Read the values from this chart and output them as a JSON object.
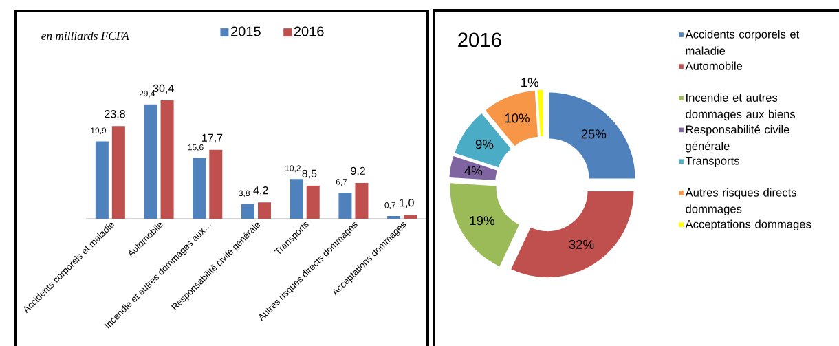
{
  "chart_data": [
    {
      "type": "bar",
      "annotations": [
        "en milliards FCFA"
      ],
      "legend": "top",
      "tick_labels": "x",
      "categories": [
        "Accidents corporels et maladie",
        "Automobile",
        "Incendie et autres dommages aux…",
        "Responsabilité civile générale",
        "Transports",
        "Autres risques directs dommages",
        "Acceptations dommages"
      ],
      "series": [
        {
          "name": "2015",
          "color": "#4f81bd",
          "values": [
            19.9,
            29.4,
            15.6,
            3.8,
            10.2,
            6.7,
            0.7
          ],
          "value_labels": [
            "19,9",
            "29,4",
            "15,6",
            "3,8",
            "10,2",
            "6,7",
            "0,7"
          ]
        },
        {
          "name": "2016",
          "color": "#c0504d",
          "values": [
            23.8,
            30.4,
            17.7,
            4.2,
            8.5,
            9.2,
            1.0
          ],
          "value_labels": [
            "23,8",
            "30,4",
            "17,7",
            "4,2",
            "8,5",
            "9,2",
            "1,0"
          ]
        }
      ]
    },
    {
      "type": "donut",
      "title": "2016",
      "legend": "right",
      "categories": [
        "Accidents corporels et maladie",
        "Automobile",
        "Incendie et autres dommages aux biens",
        "Responsabilité civile générale",
        "Transports",
        "Autres risques directs dommages",
        "Acceptations dommages"
      ],
      "values": [
        25,
        32,
        19,
        4,
        9,
        10,
        1
      ],
      "value_labels": [
        "25%",
        "32%",
        "19%",
        "4%",
        "9%",
        "10%",
        "1%"
      ],
      "colors": [
        "#4f81bd",
        "#c0504d",
        "#9bbb59",
        "#8064a2",
        "#4bacc6",
        "#f79646",
        "#ffff00"
      ]
    }
  ]
}
